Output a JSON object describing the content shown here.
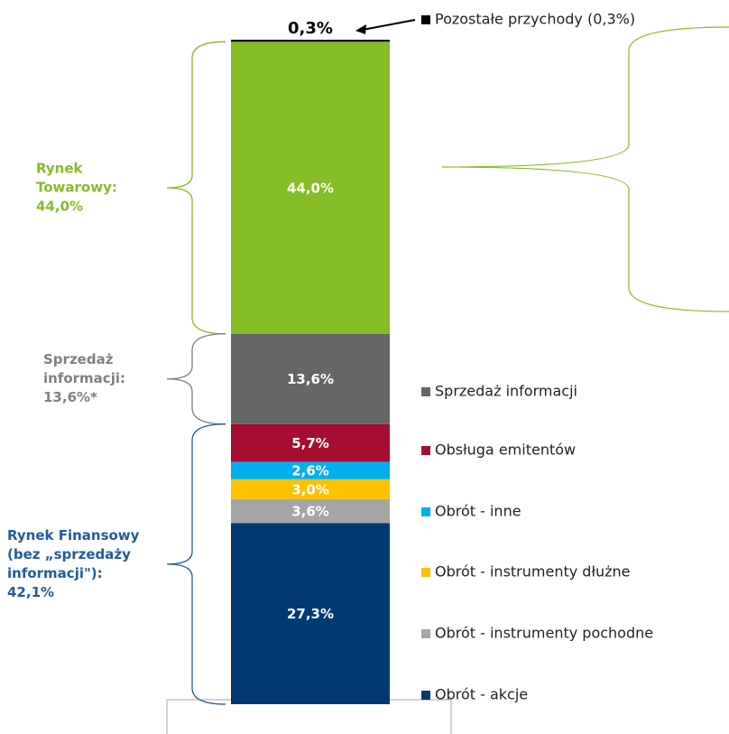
{
  "chart_data": {
    "type": "stacked_bar",
    "series": [
      {
        "name": "Obrót - akcje",
        "color": "#003a70",
        "values": [
          27.3
        ],
        "value_labels": [
          "27,3%"
        ]
      },
      {
        "name": "Obrót - instrumenty pochodne",
        "color": "#a6a6a6",
        "values": [
          3.6
        ],
        "value_labels": [
          "3,6%"
        ]
      },
      {
        "name": "Obrót - instrumenty dłużne",
        "color": "#ffc000",
        "values": [
          3.0
        ],
        "value_labels": [
          "3,0%"
        ]
      },
      {
        "name": "Obrót - inne",
        "color": "#00b0f0",
        "values": [
          2.6
        ],
        "value_labels": [
          "2,6%"
        ]
      },
      {
        "name": "Obsługa emitentów",
        "color": "#a50e32",
        "values": [
          5.7
        ],
        "value_labels": [
          "5,7%"
        ]
      },
      {
        "name": "Sprzedaż informacji",
        "color": "#666666",
        "values": [
          13.6
        ],
        "value_labels": [
          "13,6%"
        ]
      },
      {
        "color": "#86bc25",
        "values": [
          44.0
        ],
        "value_labels": [
          "44,0%"
        ]
      },
      {
        "name": "Pozostałe przychody (0,3%)",
        "color": "#000000",
        "values": [
          0.3
        ],
        "value_labels": [
          "0,3%"
        ]
      }
    ],
    "annotations": [
      {
        "lines": [
          "Rynek",
          "Towarowy:",
          "44,0%"
        ],
        "color": "#86bc25"
      },
      {
        "lines": [
          "Sprzedaż",
          "informacji:",
          "13,6%*"
        ],
        "color": "#7f7f7f"
      },
      {
        "lines": [
          "Rynek Finansowy",
          "(bez „sprzedaży",
          "informacji\"):",
          "42,1%"
        ],
        "color": "#1f5c99"
      }
    ]
  }
}
